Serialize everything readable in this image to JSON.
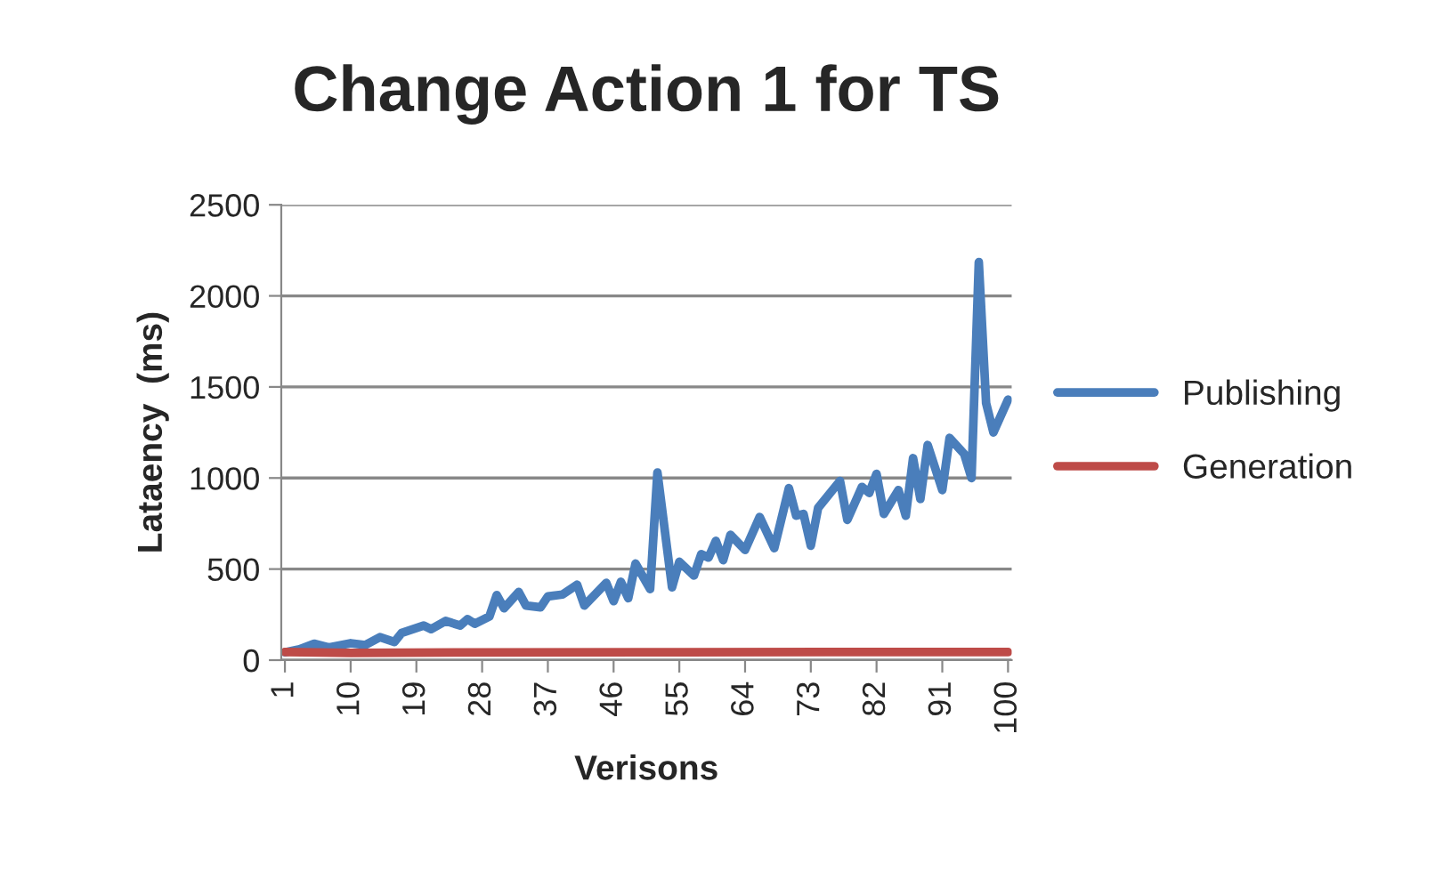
{
  "chart_data": {
    "type": "line",
    "title": "Change Action 1 for TS",
    "xlabel": "Verisons",
    "ylabel": "Lataency  (ms)",
    "xlim": [
      0.5,
      100.5
    ],
    "xticks": [
      1,
      10,
      19,
      28,
      37,
      46,
      55,
      64,
      73,
      82,
      91,
      100
    ],
    "ylim": [
      0,
      2500
    ],
    "yticks": [
      0,
      500,
      1000,
      1500,
      2000,
      2500
    ],
    "grid": "y",
    "legend": "right",
    "marker": "none",
    "line_style": "solid",
    "series": [
      {
        "name": "Publishing",
        "color": "#4a7ebb",
        "x": [
          1,
          3,
          5,
          7,
          10,
          12,
          14,
          16,
          17,
          20,
          21,
          23,
          25,
          26,
          27,
          29,
          30,
          31,
          33,
          34,
          36,
          37,
          39,
          41,
          42,
          45,
          46,
          47,
          48,
          49,
          51,
          52,
          54,
          55,
          57,
          58,
          59,
          60,
          61,
          62,
          64,
          66,
          68,
          70,
          71,
          72,
          73,
          74,
          77,
          78,
          80,
          81,
          82,
          83,
          85,
          86,
          87,
          88,
          89,
          91,
          92,
          94,
          95,
          96,
          97,
          98,
          100
        ],
        "values": [
          43,
          60,
          90,
          70,
          93,
          83,
          126,
          100,
          150,
          190,
          170,
          215,
          190,
          225,
          200,
          240,
          357,
          285,
          374,
          300,
          290,
          350,
          360,
          414,
          300,
          424,
          324,
          430,
          340,
          530,
          390,
          1030,
          400,
          540,
          464,
          582,
          563,
          655,
          549,
          688,
          605,
          786,
          615,
          944,
          793,
          803,
          628,
          836,
          984,
          770,
          951,
          918,
          1023,
          803,
          934,
          793,
          1109,
          885,
          1181,
          934,
          1220,
          1132,
          1000,
          2185,
          1411,
          1250,
          1430
        ]
      },
      {
        "name": "Generation",
        "color": "#be4b48",
        "x": [
          1,
          10,
          25,
          50,
          75,
          100
        ],
        "values": [
          45,
          40,
          42,
          43,
          45,
          44
        ]
      }
    ]
  }
}
